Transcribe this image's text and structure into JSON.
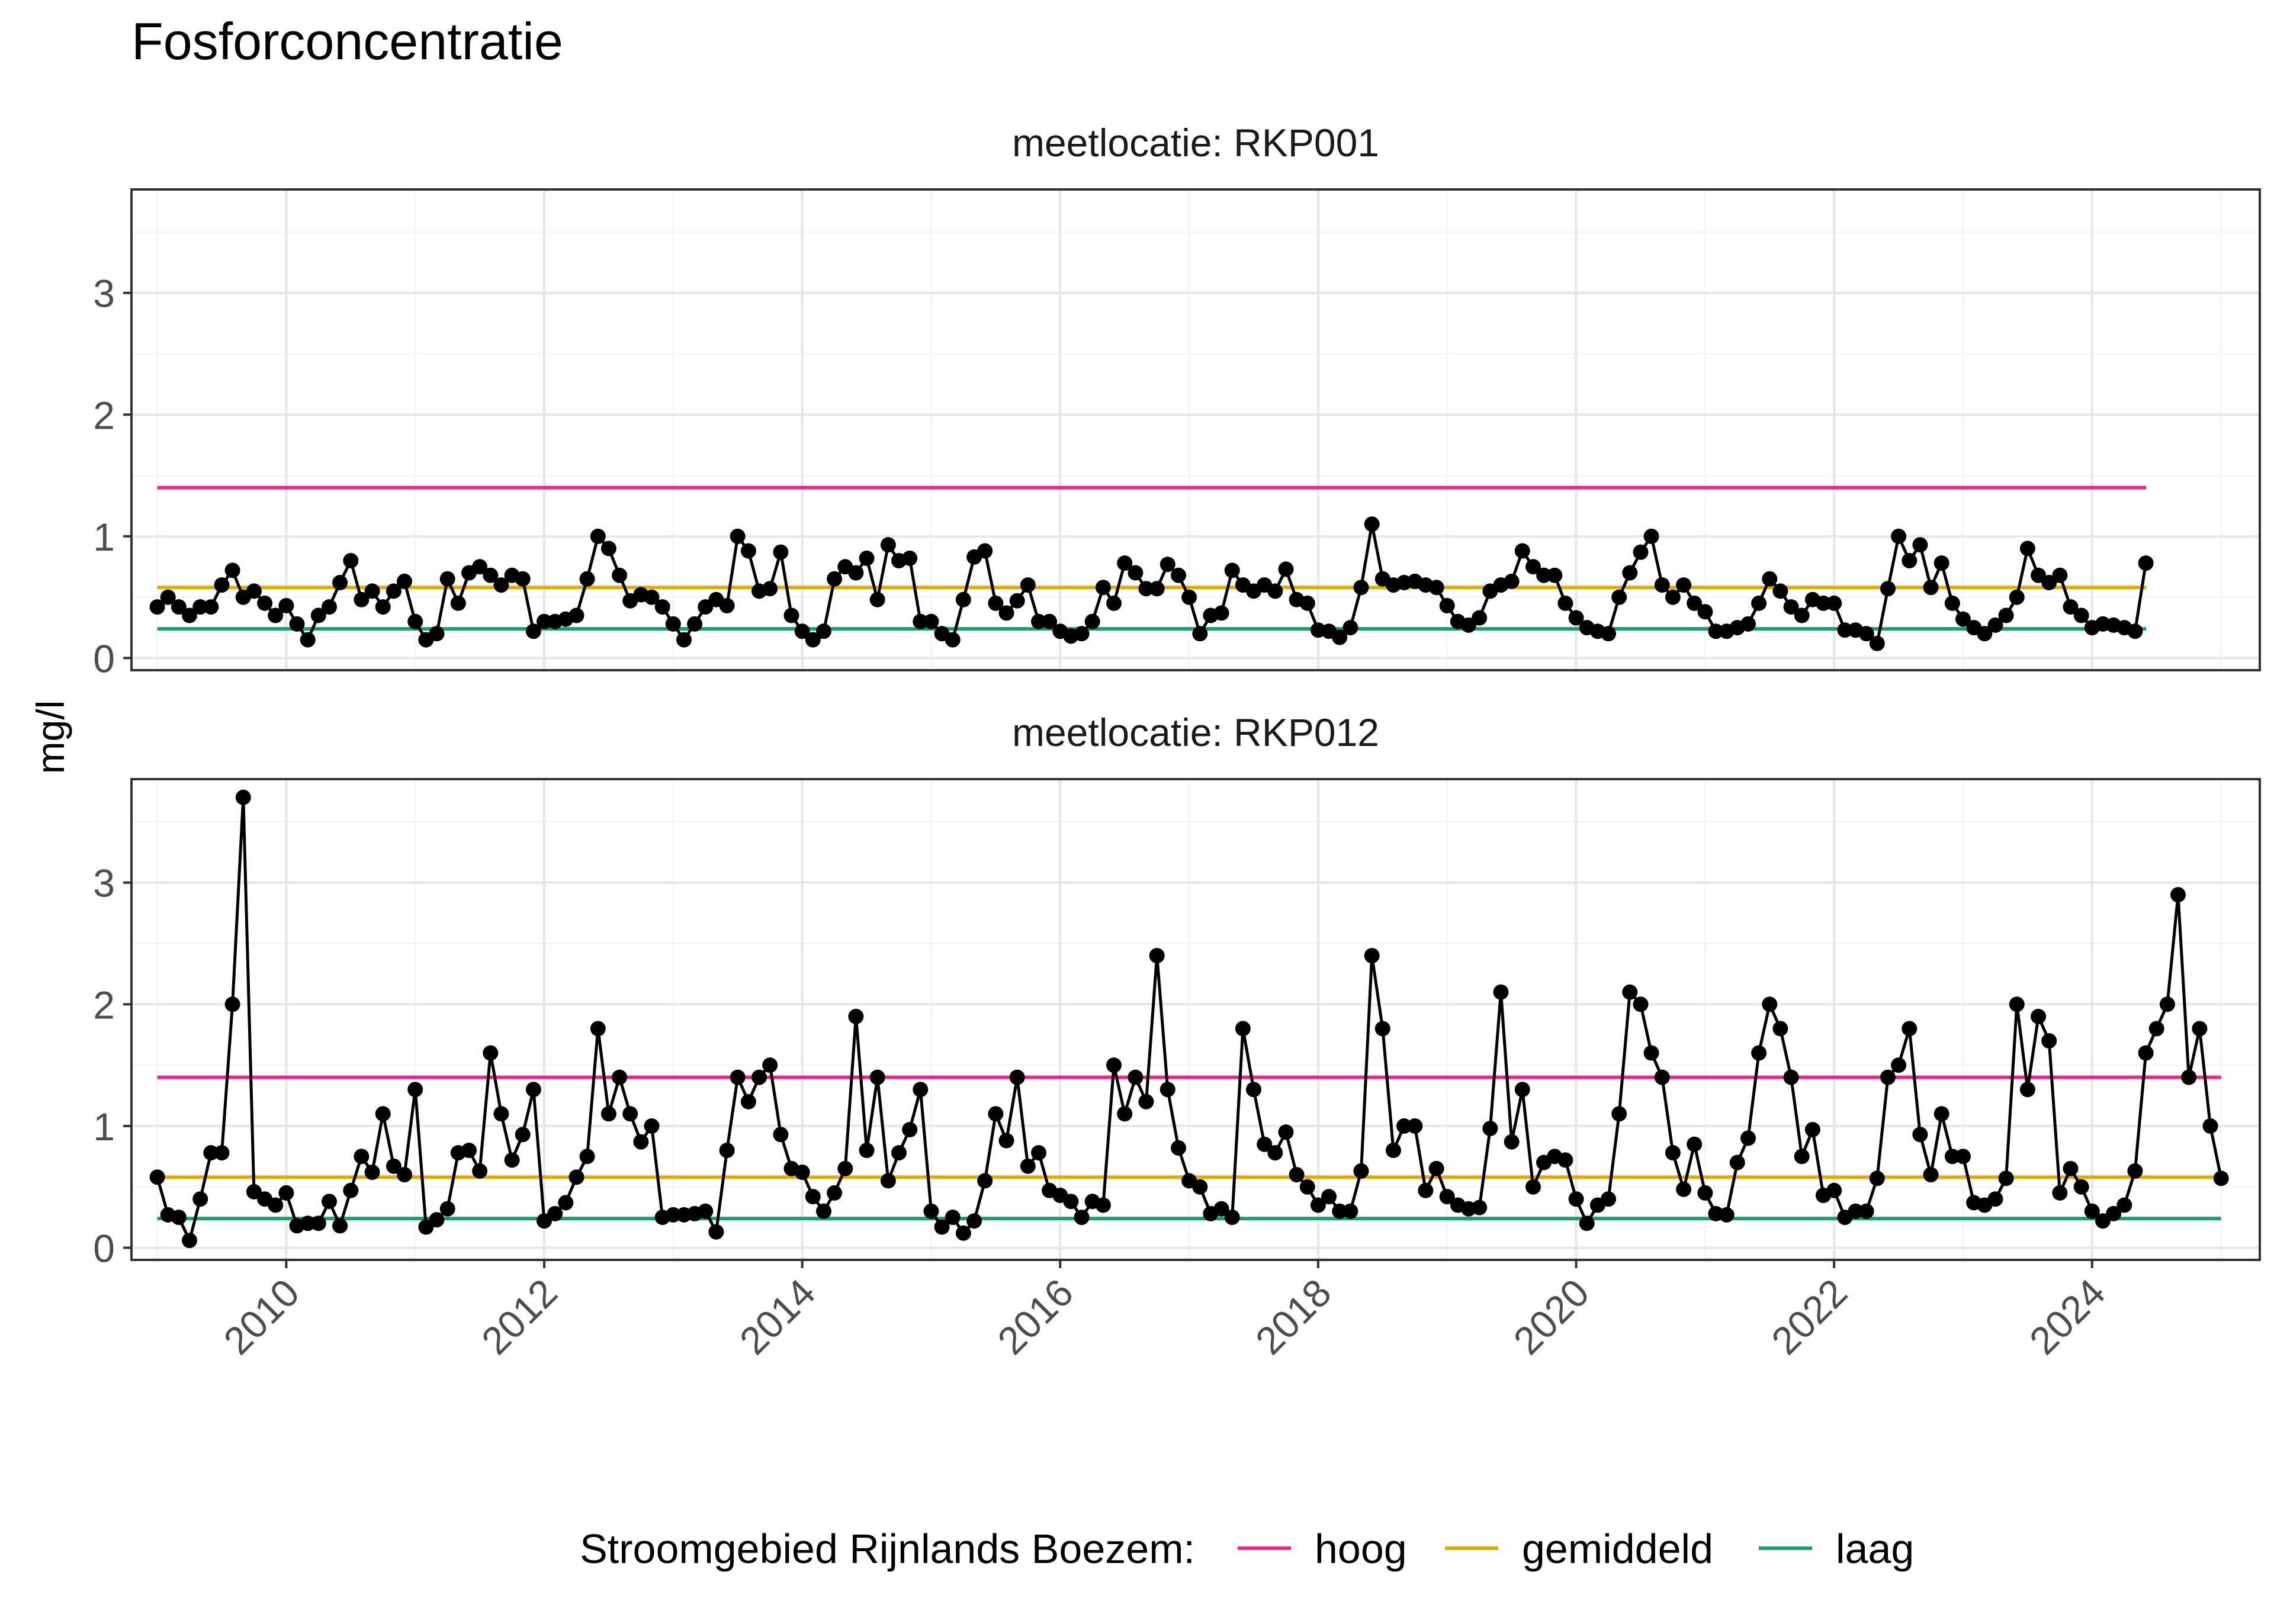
{
  "title": "Fosforconcentratie",
  "ylabel": "mg/l",
  "legend": {
    "title": "Stroomgebied Rijnlands Boezem:",
    "items": [
      {
        "label": "hoog",
        "color": "#E7298A"
      },
      {
        "label": "gemiddeld",
        "color": "#E6AB02"
      },
      {
        "label": "laag",
        "color": "#1B9E77"
      }
    ]
  },
  "chart_data": {
    "type": "line",
    "title": "Fosforconcentratie",
    "xlabel": "",
    "ylabel": "mg/l",
    "x_ticks": [
      "2010",
      "2012",
      "2014",
      "2016",
      "2018",
      "2020",
      "2022",
      "2024"
    ],
    "y_ticks": [
      0,
      1,
      2,
      3
    ],
    "xlim": [
      2008.8,
      2025.3
    ],
    "ylim": [
      -0.1,
      3.85
    ],
    "grid": true,
    "legend_position": "bottom",
    "panels": [
      {
        "strip": "meetlocatie: RKP001",
        "reference_lines": {
          "hoog": 1.4,
          "gemiddeld": 0.58,
          "laag": 0.24
        },
        "reference_span": [
          2009.0,
          2024.42
        ],
        "series": [
          {
            "x": [
              "2009-01",
              "2009-02",
              "2009-03",
              "2009-04",
              "2009-05",
              "2009-06",
              "2009-07",
              "2009-08",
              "2009-09",
              "2009-10",
              "2009-11",
              "2009-12",
              "2010-01",
              "2010-02",
              "2010-03",
              "2010-04",
              "2010-05",
              "2010-06",
              "2010-07",
              "2010-08",
              "2010-09",
              "2010-10",
              "2010-11",
              "2010-12",
              "2011-01",
              "2011-02",
              "2011-03",
              "2011-04",
              "2011-05",
              "2011-06",
              "2011-07",
              "2011-08",
              "2011-09",
              "2011-10",
              "2011-11",
              "2011-12",
              "2012-01",
              "2012-02",
              "2012-03",
              "2012-04",
              "2012-05",
              "2012-06",
              "2012-07",
              "2012-08",
              "2012-09",
              "2012-10",
              "2012-11",
              "2012-12",
              "2013-01",
              "2013-02",
              "2013-03",
              "2013-04",
              "2013-05",
              "2013-06",
              "2013-07",
              "2013-08",
              "2013-09",
              "2013-10",
              "2013-11",
              "2013-12",
              "2014-01",
              "2014-02",
              "2014-03",
              "2014-04",
              "2014-05",
              "2014-06",
              "2014-07",
              "2014-08",
              "2014-09",
              "2014-10",
              "2014-11",
              "2014-12",
              "2015-01",
              "2015-02",
              "2015-03",
              "2015-04",
              "2015-05",
              "2015-06",
              "2015-07",
              "2015-08",
              "2015-09",
              "2015-10",
              "2015-11",
              "2015-12",
              "2016-01",
              "2016-02",
              "2016-03",
              "2016-04",
              "2016-05",
              "2016-06",
              "2016-07",
              "2016-08",
              "2016-09",
              "2016-10",
              "2016-11",
              "2016-12",
              "2017-01",
              "2017-02",
              "2017-03",
              "2017-04",
              "2017-05",
              "2017-06",
              "2017-07",
              "2017-08",
              "2017-09",
              "2017-10",
              "2017-11",
              "2017-12",
              "2018-01",
              "2018-02",
              "2018-03",
              "2018-04",
              "2018-05",
              "2018-06",
              "2018-07",
              "2018-08",
              "2018-09",
              "2018-10",
              "2018-11",
              "2018-12",
              "2019-01",
              "2019-02",
              "2019-03",
              "2019-04",
              "2019-05",
              "2019-06",
              "2019-07",
              "2019-08",
              "2019-09",
              "2019-10",
              "2019-11",
              "2019-12",
              "2020-01",
              "2020-02",
              "2020-03",
              "2020-04",
              "2020-05",
              "2020-06",
              "2020-07",
              "2020-08",
              "2020-09",
              "2020-10",
              "2020-11",
              "2020-12",
              "2021-01",
              "2021-02",
              "2021-03",
              "2021-04",
              "2021-05",
              "2021-06",
              "2021-07",
              "2021-08",
              "2021-09",
              "2021-10",
              "2021-11",
              "2021-12",
              "2022-01",
              "2022-02",
              "2022-03",
              "2022-04",
              "2022-05",
              "2022-06",
              "2022-07",
              "2022-08",
              "2022-09",
              "2022-10",
              "2022-11",
              "2022-12",
              "2023-01",
              "2023-02",
              "2023-03",
              "2023-04",
              "2023-05",
              "2023-06",
              "2023-07",
              "2023-08",
              "2023-09",
              "2023-10",
              "2023-11",
              "2023-12",
              "2024-01",
              "2024-02",
              "2024-03",
              "2024-04",
              "2024-05",
              "2024-06"
            ],
            "y": [
              0.42,
              0.5,
              0.42,
              0.35,
              0.42,
              0.42,
              0.6,
              0.72,
              0.5,
              0.55,
              0.45,
              0.35,
              0.43,
              0.28,
              0.15,
              0.35,
              0.42,
              0.62,
              0.8,
              0.48,
              0.55,
              0.42,
              0.55,
              0.63,
              0.3,
              0.15,
              0.2,
              0.65,
              0.45,
              0.7,
              0.75,
              0.68,
              0.6,
              0.68,
              0.65,
              0.22,
              0.3,
              0.3,
              0.32,
              0.35,
              0.65,
              1.0,
              0.9,
              0.68,
              0.47,
              0.52,
              0.5,
              0.42,
              0.28,
              0.15,
              0.28,
              0.42,
              0.48,
              0.43,
              1.0,
              0.88,
              0.55,
              0.57,
              0.87,
              0.35,
              0.22,
              0.15,
              0.22,
              0.65,
              0.75,
              0.7,
              0.82,
              0.48,
              0.93,
              0.8,
              0.82,
              0.3,
              0.3,
              0.2,
              0.15,
              0.48,
              0.83,
              0.88,
              0.45,
              0.37,
              0.47,
              0.6,
              0.3,
              0.3,
              0.22,
              0.18,
              0.2,
              0.3,
              0.58,
              0.45,
              0.78,
              0.7,
              0.57,
              0.57,
              0.77,
              0.68,
              0.5,
              0.2,
              0.35,
              0.37,
              0.72,
              0.6,
              0.55,
              0.6,
              0.55,
              0.73,
              0.48,
              0.45,
              0.23,
              0.22,
              0.17,
              0.25,
              0.58,
              1.1,
              0.65,
              0.6,
              0.62,
              0.63,
              0.6,
              0.58,
              0.43,
              0.3,
              0.27,
              0.33,
              0.55,
              0.6,
              0.63,
              0.88,
              0.75,
              0.68,
              0.68,
              0.45,
              0.33,
              0.25,
              0.22,
              0.2,
              0.5,
              0.7,
              0.87,
              1.0,
              0.6,
              0.5,
              0.6,
              0.45,
              0.38,
              0.22,
              0.22,
              0.25,
              0.28,
              0.45,
              0.65,
              0.55,
              0.42,
              0.35,
              0.48,
              0.45,
              0.45,
              0.23,
              0.23,
              0.2,
              0.12,
              0.57,
              1.0,
              0.8,
              0.93,
              0.58,
              0.78,
              0.45,
              0.32,
              0.25,
              0.2,
              0.27,
              0.35,
              0.5,
              0.9,
              0.68,
              0.62,
              0.68,
              0.42,
              0.35,
              0.25,
              0.28,
              0.27,
              0.25,
              0.22,
              0.78
            ]
          }
        ]
      },
      {
        "strip": "meetlocatie: RKP012",
        "reference_lines": {
          "hoog": 1.4,
          "gemiddeld": 0.58,
          "laag": 0.24
        },
        "reference_span": [
          2009.0,
          2025.0
        ],
        "series": [
          {
            "x": [
              "2009-01",
              "2009-02",
              "2009-03",
              "2009-04",
              "2009-05",
              "2009-06",
              "2009-07",
              "2009-08",
              "2009-09",
              "2009-10",
              "2009-11",
              "2009-12",
              "2010-01",
              "2010-02",
              "2010-03",
              "2010-04",
              "2010-05",
              "2010-06",
              "2010-07",
              "2010-08",
              "2010-09",
              "2010-10",
              "2010-11",
              "2010-12",
              "2011-01",
              "2011-02",
              "2011-03",
              "2011-04",
              "2011-05",
              "2011-06",
              "2011-07",
              "2011-08",
              "2011-09",
              "2011-10",
              "2011-11",
              "2011-12",
              "2012-01",
              "2012-02",
              "2012-03",
              "2012-04",
              "2012-05",
              "2012-06",
              "2012-07",
              "2012-08",
              "2012-09",
              "2012-10",
              "2012-11",
              "2012-12",
              "2013-01",
              "2013-02",
              "2013-03",
              "2013-04",
              "2013-05",
              "2013-06",
              "2013-07",
              "2013-08",
              "2013-09",
              "2013-10",
              "2013-11",
              "2013-12",
              "2014-01",
              "2014-02",
              "2014-03",
              "2014-04",
              "2014-05",
              "2014-06",
              "2014-07",
              "2014-08",
              "2014-09",
              "2014-10",
              "2014-11",
              "2014-12",
              "2015-01",
              "2015-02",
              "2015-03",
              "2015-04",
              "2015-05",
              "2015-06",
              "2015-07",
              "2015-08",
              "2015-09",
              "2015-10",
              "2015-11",
              "2015-12",
              "2016-01",
              "2016-02",
              "2016-03",
              "2016-04",
              "2016-05",
              "2016-06",
              "2016-07",
              "2016-08",
              "2016-09",
              "2016-10",
              "2016-11",
              "2016-12",
              "2017-01",
              "2017-02",
              "2017-03",
              "2017-04",
              "2017-05",
              "2017-06",
              "2017-07",
              "2017-08",
              "2017-09",
              "2017-10",
              "2017-11",
              "2017-12",
              "2018-01",
              "2018-02",
              "2018-03",
              "2018-04",
              "2018-05",
              "2018-06",
              "2018-07",
              "2018-08",
              "2018-09",
              "2018-10",
              "2018-11",
              "2018-12",
              "2019-01",
              "2019-02",
              "2019-03",
              "2019-04",
              "2019-05",
              "2019-06",
              "2019-07",
              "2019-08",
              "2019-09",
              "2019-10",
              "2019-11",
              "2019-12",
              "2020-01",
              "2020-02",
              "2020-03",
              "2020-04",
              "2020-05",
              "2020-06",
              "2020-07",
              "2020-08",
              "2020-09",
              "2020-10",
              "2020-11",
              "2020-12",
              "2021-01",
              "2021-02",
              "2021-03",
              "2021-04",
              "2021-05",
              "2021-06",
              "2021-07",
              "2021-08",
              "2021-09",
              "2021-10",
              "2021-11",
              "2021-12",
              "2022-01",
              "2022-02",
              "2022-03",
              "2022-04",
              "2022-05",
              "2022-06",
              "2022-07",
              "2022-08",
              "2022-09",
              "2022-10",
              "2022-11",
              "2022-12",
              "2023-01",
              "2023-02",
              "2023-03",
              "2023-04",
              "2023-05",
              "2023-06",
              "2023-07",
              "2023-08",
              "2023-09",
              "2023-10",
              "2023-11",
              "2023-12",
              "2024-01",
              "2024-02",
              "2024-03",
              "2024-04",
              "2024-05",
              "2024-06",
              "2024-07",
              "2024-08",
              "2024-09",
              "2024-10",
              "2024-11",
              "2024-12",
              "2025-01"
            ],
            "y": [
              0.58,
              0.27,
              0.25,
              0.06,
              0.4,
              0.78,
              0.78,
              2.0,
              3.7,
              0.46,
              0.4,
              0.35,
              0.45,
              0.18,
              0.2,
              0.2,
              0.38,
              0.18,
              0.47,
              0.75,
              0.62,
              1.1,
              0.67,
              0.6,
              1.3,
              0.17,
              0.23,
              0.32,
              0.78,
              0.8,
              0.63,
              1.6,
              1.1,
              0.72,
              0.93,
              1.3,
              0.22,
              0.28,
              0.37,
              0.58,
              0.75,
              1.8,
              1.1,
              1.4,
              1.1,
              0.87,
              1.0,
              0.25,
              0.27,
              0.27,
              0.28,
              0.3,
              0.13,
              0.8,
              1.4,
              1.2,
              1.4,
              1.5,
              0.93,
              0.65,
              0.62,
              0.42,
              0.3,
              0.45,
              0.65,
              1.9,
              0.8,
              1.4,
              0.55,
              0.78,
              0.97,
              1.3,
              0.3,
              0.17,
              0.25,
              0.12,
              0.22,
              0.55,
              1.1,
              0.88,
              1.4,
              0.67,
              0.78,
              0.47,
              0.43,
              0.38,
              0.25,
              0.38,
              0.35,
              1.5,
              1.1,
              1.4,
              1.2,
              2.4,
              1.3,
              0.82,
              0.55,
              0.5,
              0.28,
              0.32,
              0.25,
              1.8,
              1.3,
              0.85,
              0.78,
              0.95,
              0.6,
              0.5,
              0.35,
              0.42,
              0.3,
              0.3,
              0.63,
              2.4,
              1.8,
              0.8,
              1.0,
              1.0,
              0.47,
              0.65,
              0.42,
              0.35,
              0.32,
              0.33,
              0.98,
              2.1,
              0.87,
              1.3,
              0.5,
              0.7,
              0.75,
              0.72,
              0.4,
              0.2,
              0.35,
              0.4,
              1.1,
              2.1,
              2.0,
              1.6,
              1.4,
              0.78,
              0.48,
              0.85,
              0.45,
              0.28,
              0.27,
              0.7,
              0.9,
              1.6,
              2.0,
              1.8,
              1.4,
              0.75,
              0.97,
              0.43,
              0.47,
              0.25,
              0.3,
              0.3,
              0.57,
              1.4,
              1.5,
              1.8,
              0.93,
              0.6,
              1.1,
              0.75,
              0.75,
              0.37,
              0.35,
              0.4,
              0.57,
              2.0,
              1.3,
              1.9,
              1.7,
              0.45,
              0.65,
              0.5,
              0.3,
              0.22,
              0.28,
              0.35,
              0.63,
              1.6,
              1.8,
              2.0,
              2.9,
              1.4,
              1.8,
              1.0,
              0.57
            ]
          }
        ]
      }
    ]
  }
}
